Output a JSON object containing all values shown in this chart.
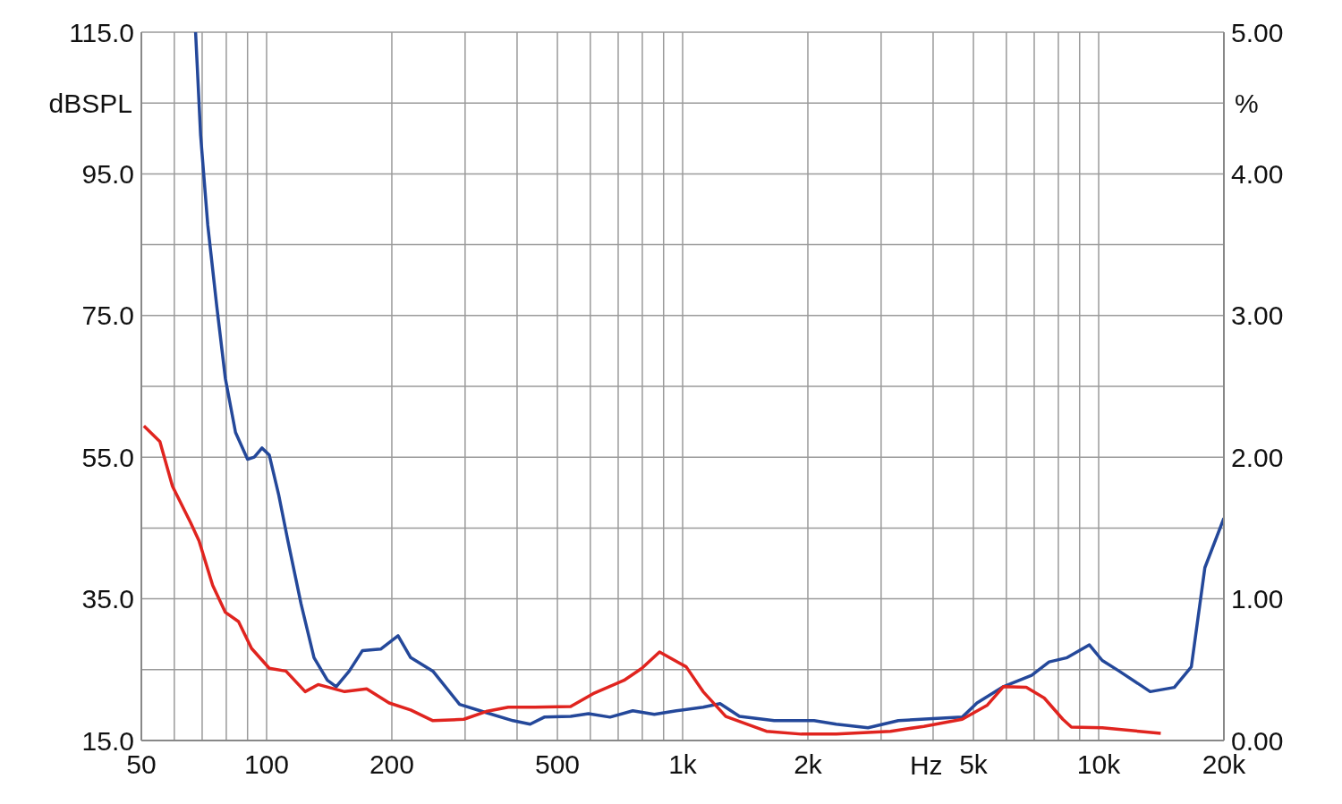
{
  "chart_data": {
    "type": "line",
    "xlabel": "Hz",
    "ylabel": "dBSPL",
    "y2label": "%",
    "log": "x",
    "grid": true,
    "legend": false,
    "marker": "none",
    "line_style": "solid",
    "xlim": [
      50,
      20000
    ],
    "xticks": [
      {
        "value": 50,
        "label": "50"
      },
      {
        "value": 60,
        "label": null
      },
      {
        "value": 70,
        "label": null
      },
      {
        "value": 80,
        "label": null
      },
      {
        "value": 90,
        "label": null
      },
      {
        "value": 100,
        "label": "100"
      },
      {
        "value": 200,
        "label": "200"
      },
      {
        "value": 300,
        "label": null
      },
      {
        "value": 400,
        "label": null
      },
      {
        "value": 500,
        "label": "500"
      },
      {
        "value": 600,
        "label": null
      },
      {
        "value": 700,
        "label": null
      },
      {
        "value": 800,
        "label": null
      },
      {
        "value": 900,
        "label": null
      },
      {
        "value": 1000,
        "label": "1k"
      },
      {
        "value": 2000,
        "label": "2k"
      },
      {
        "value": 3000,
        "label": null
      },
      {
        "value": 4000,
        "label": null
      },
      {
        "value": 5000,
        "label": "5k"
      },
      {
        "value": 6000,
        "label": null
      },
      {
        "value": 7000,
        "label": null
      },
      {
        "value": 8000,
        "label": null
      },
      {
        "value": 9000,
        "label": null
      },
      {
        "value": 10000,
        "label": "10k"
      },
      {
        "value": 20000,
        "label": "20k"
      }
    ],
    "ylim": [
      15,
      115
    ],
    "yticks": [
      {
        "value": 15,
        "label": "15.0"
      },
      {
        "value": 25,
        "label": null
      },
      {
        "value": 35,
        "label": "35.0"
      },
      {
        "value": 45,
        "label": null
      },
      {
        "value": 55,
        "label": "55.0"
      },
      {
        "value": 65,
        "label": null
      },
      {
        "value": 75,
        "label": "75.0"
      },
      {
        "value": 85,
        "label": null
      },
      {
        "value": 95,
        "label": "95.0"
      },
      {
        "value": 105,
        "label": null
      },
      {
        "value": 115,
        "label": "115.0"
      }
    ],
    "y2lim": [
      0,
      5
    ],
    "y2ticks": [
      {
        "value": 0,
        "label": "0.00"
      },
      {
        "value": 1,
        "label": "1.00"
      },
      {
        "value": 2,
        "label": "2.00"
      },
      {
        "value": 3,
        "label": "3.00"
      },
      {
        "value": 4,
        "label": "4.00"
      },
      {
        "value": 5,
        "label": "5.00"
      }
    ],
    "series": [
      {
        "color": "#24489a",
        "x": [
          67.5,
          69.4,
          72.2,
          75.9,
          79.6,
          84.2,
          90,
          93.4,
          97.5,
          101.5,
          107,
          112.5,
          121,
          130,
          140,
          147,
          158,
          170,
          188,
          207,
          222,
          251,
          291,
          330,
          391,
          430,
          465,
          538,
          594,
          669,
          759,
          855,
          966,
          1120,
          1230,
          1370,
          1660,
          2070,
          2340,
          2790,
          3300,
          4000,
          4700,
          5100,
          5900,
          6900,
          7600,
          8400,
          9500,
          10200,
          11200,
          13300,
          15200,
          16700,
          18000,
          20000
        ],
        "values": [
          115,
          100.5,
          87.8,
          76.3,
          66.1,
          58.5,
          54.7,
          55,
          56.3,
          55.3,
          49.6,
          43.2,
          34.3,
          26.7,
          23.5,
          22.6,
          24.8,
          27.7,
          27.9,
          29.8,
          26.7,
          24.8,
          20.1,
          19.1,
          17.8,
          17.3,
          18.3,
          18.4,
          18.8,
          18.3,
          19.2,
          18.7,
          19.2,
          19.7,
          20.2,
          18.4,
          17.8,
          17.8,
          17.3,
          16.8,
          17.8,
          18.1,
          18.3,
          20.3,
          22.6,
          24.2,
          26.1,
          26.7,
          28.5,
          26.3,
          24.8,
          21.9,
          22.5,
          25.4,
          39.4,
          46.4
        ]
      },
      {
        "color": "#e0241f",
        "x": [
          50.7,
          55.4,
          59.4,
          65.6,
          68.8,
          74.2,
          79.6,
          85.6,
          92,
          101.5,
          111.3,
          123.8,
          133,
          154,
          174,
          197,
          222,
          251,
          298,
          337,
          381,
          441,
          538,
          609,
          723,
          798,
          880,
          1020,
          1120,
          1270,
          1590,
          1930,
          2340,
          3160,
          3800,
          4700,
          5400,
          5900,
          6700,
          7400,
          8200,
          8600,
          10200,
          12500,
          14100
        ],
        "values": [
          59.4,
          57.2,
          50.9,
          45.8,
          43.2,
          36.9,
          33.1,
          31.8,
          28,
          25.2,
          24.8,
          21.9,
          22.9,
          21.9,
          22.3,
          20.3,
          19.3,
          17.8,
          18,
          19.1,
          19.7,
          19.7,
          19.8,
          21.6,
          23.5,
          25.2,
          27.5,
          25.4,
          21.9,
          18.4,
          16.3,
          15.9,
          15.9,
          16.3,
          17,
          18,
          20,
          22.6,
          22.5,
          21,
          18,
          16.9,
          16.8,
          16.3,
          16
        ]
      }
    ]
  }
}
